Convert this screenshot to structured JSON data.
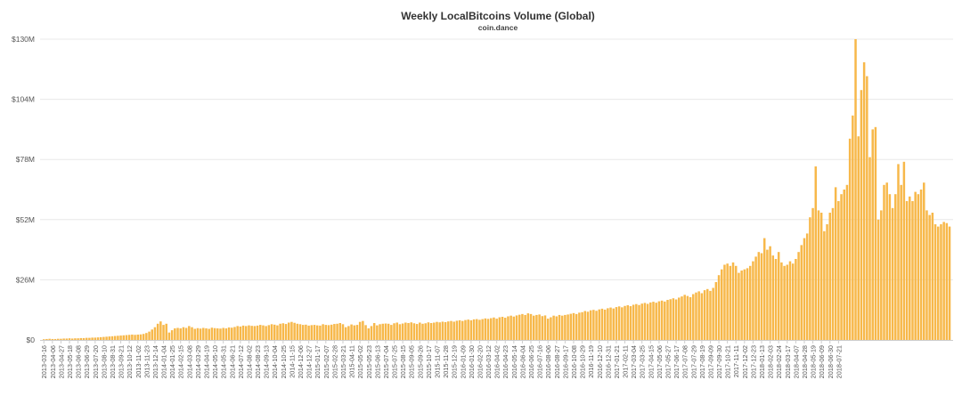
{
  "chart_data": {
    "type": "bar",
    "title": "Weekly LocalBitcoins Volume (Global)",
    "subtitle": "coin.dance",
    "xlabel": "",
    "ylabel": "",
    "x_start": "2013-03-16",
    "x_interval_days": 7,
    "ylim": [
      0,
      130000000
    ],
    "yticks": [
      {
        "value": 0,
        "label": "$0"
      },
      {
        "value": 26000000,
        "label": "$26M"
      },
      {
        "value": 52000000,
        "label": "$52M"
      },
      {
        "value": 78000000,
        "label": "$78M"
      },
      {
        "value": 104000000,
        "label": "$104M"
      },
      {
        "value": 130000000,
        "label": "$130M"
      }
    ],
    "xtick_labels": [
      "2013-03-16",
      "2013-04-06",
      "2013-04-27",
      "2013-05-18",
      "2013-06-08",
      "2013-06-29",
      "2013-07-20",
      "2013-08-10",
      "2013-08-31",
      "2013-09-21",
      "2013-10-12",
      "2013-11-02",
      "2013-11-23",
      "2013-12-14",
      "2014-01-04",
      "2014-01-25",
      "2014-02-15",
      "2014-03-08",
      "2014-03-29",
      "2014-04-19",
      "2014-05-10",
      "2014-05-31",
      "2014-06-21",
      "2014-07-12",
      "2014-08-02",
      "2014-08-23",
      "2014-09-13",
      "2014-10-04",
      "2014-10-25",
      "2014-11-15",
      "2014-12-06",
      "2014-12-27",
      "2015-01-17",
      "2015-02-07",
      "2015-02-28",
      "2015-03-21",
      "2015-04-11",
      "2015-05-02",
      "2015-05-23",
      "2015-06-13",
      "2015-07-04",
      "2015-07-25",
      "2015-08-15",
      "2015-09-05",
      "2015-09-26",
      "2015-10-17",
      "2015-11-07",
      "2015-11-28",
      "2015-12-19",
      "2016-01-09",
      "2016-01-30",
      "2016-02-20",
      "2016-03-12",
      "2016-04-02",
      "2016-04-23",
      "2016-05-14",
      "2016-06-04",
      "2016-06-25",
      "2016-07-16",
      "2016-08-06",
      "2016-08-27",
      "2016-09-17",
      "2016-10-08",
      "2016-10-29",
      "2016-11-19",
      "2016-12-10",
      "2016-12-31",
      "2017-01-21",
      "2017-02-11",
      "2017-03-04",
      "2017-03-25",
      "2017-04-15",
      "2017-05-06",
      "2017-05-27",
      "2017-06-17",
      "2017-07-08",
      "2017-07-29",
      "2017-08-19",
      "2017-09-09",
      "2017-09-30",
      "2017-10-21",
      "2017-11-11",
      "2017-12-02",
      "2017-12-23",
      "2018-01-13",
      "2018-02-03",
      "2018-02-24",
      "2018-03-17",
      "2018-04-07",
      "2018-04-28",
      "2018-05-19",
      "2018-06-09",
      "2018-06-30",
      "2018-07-21"
    ],
    "values_millions": [
      0.3,
      0.4,
      0.5,
      0.4,
      0.4,
      0.5,
      0.5,
      0.6,
      0.6,
      0.7,
      0.6,
      0.7,
      0.7,
      0.8,
      0.8,
      0.9,
      0.9,
      1.0,
      1.0,
      1.1,
      1.2,
      1.3,
      1.4,
      1.5,
      1.6,
      1.7,
      1.8,
      1.9,
      2.0,
      2.1,
      2.2,
      2.3,
      2.2,
      2.3,
      2.4,
      2.6,
      3.0,
      3.6,
      4.5,
      5.5,
      7.0,
      8.0,
      6.5,
      7.0,
      3.2,
      4.2,
      5.0,
      5.2,
      5.0,
      5.5,
      5.2,
      6.0,
      5.5,
      4.8,
      5.1,
      4.9,
      5.2,
      5.0,
      4.8,
      5.3,
      5.1,
      5.0,
      4.9,
      5.2,
      5.0,
      5.4,
      5.3,
      5.6,
      6.0,
      5.8,
      6.2,
      6.0,
      6.3,
      6.1,
      6.0,
      6.2,
      6.5,
      6.3,
      6.0,
      6.4,
      6.8,
      6.6,
      6.3,
      7.0,
      7.2,
      6.9,
      7.5,
      7.8,
      7.4,
      7.0,
      6.8,
      6.5,
      6.6,
      6.2,
      6.4,
      6.5,
      6.3,
      6.2,
      6.8,
      6.5,
      6.4,
      6.6,
      6.9,
      7.0,
      7.3,
      6.8,
      5.5,
      6.0,
      6.7,
      6.3,
      6.5,
      7.8,
      8.2,
      6.4,
      5.0,
      6.0,
      7.3,
      6.3,
      6.8,
      7.0,
      7.1,
      7.0,
      6.5,
      7.2,
      7.5,
      6.8,
      7.1,
      7.5,
      7.3,
      7.6,
      7.2,
      6.9,
      7.5,
      7.0,
      7.2,
      7.6,
      7.3,
      7.5,
      7.8,
      7.6,
      7.9,
      7.7,
      8.0,
      8.2,
      7.9,
      8.3,
      8.5,
      8.2,
      8.6,
      8.8,
      8.5,
      8.9,
      9.0,
      8.7,
      9.0,
      9.3,
      9.1,
      9.4,
      9.7,
      9.2,
      9.8,
      10.0,
      9.6,
      10.2,
      10.5,
      10.1,
      10.6,
      10.9,
      11.2,
      10.8,
      11.5,
      11.2,
      10.5,
      10.8,
      11.0,
      10.3,
      10.6,
      9.2,
      9.8,
      10.5,
      10.2,
      10.8,
      10.5,
      10.8,
      11.0,
      11.3,
      11.6,
      11.2,
      11.8,
      12.0,
      12.5,
      12.2,
      12.8,
      13.0,
      12.6,
      13.2,
      13.5,
      13.1,
      13.7,
      14.0,
      13.6,
      14.2,
      14.5,
      14.1,
      14.7,
      15.0,
      14.6,
      15.2,
      15.5,
      15.1,
      15.7,
      16.0,
      15.6,
      16.2,
      16.5,
      16.1,
      16.7,
      17.0,
      16.6,
      17.3,
      17.6,
      18.0,
      17.5,
      18.3,
      18.8,
      19.5,
      19.0,
      18.5,
      19.8,
      20.5,
      21.0,
      20.2,
      21.5,
      22.0,
      21.2,
      22.5,
      25.0,
      28.0,
      30.5,
      32.5,
      33.0,
      32.0,
      33.5,
      32.0,
      29.0,
      30.0,
      30.5,
      31.0,
      32.0,
      34.0,
      36.0,
      38.0,
      37.5,
      44.0,
      39.0,
      40.5,
      36.5,
      35.0,
      38.0,
      33.5,
      32.0,
      32.5,
      34.0,
      33.0,
      35.0,
      38.0,
      41.0,
      44.0,
      46.0,
      53.0,
      57.0,
      75.0,
      56.0,
      55.0,
      47.0,
      50.0,
      55.0,
      57.0,
      66.0,
      60.0,
      63.0,
      65.0,
      67.0,
      87.0,
      97.0,
      130.0,
      88.0,
      108.0,
      120.0,
      114.0,
      79.0,
      91.0,
      92.0,
      52.0,
      56.0,
      67.0,
      68.0,
      63.0,
      57.0,
      63.0,
      76.0,
      67.0,
      77.0,
      60.0,
      62.0,
      60.0,
      64.0,
      63.0,
      65.0,
      68.0,
      56.0,
      54.0,
      55.0,
      50.0,
      49.0,
      50.0,
      51.0,
      50.5,
      49.0
    ]
  }
}
